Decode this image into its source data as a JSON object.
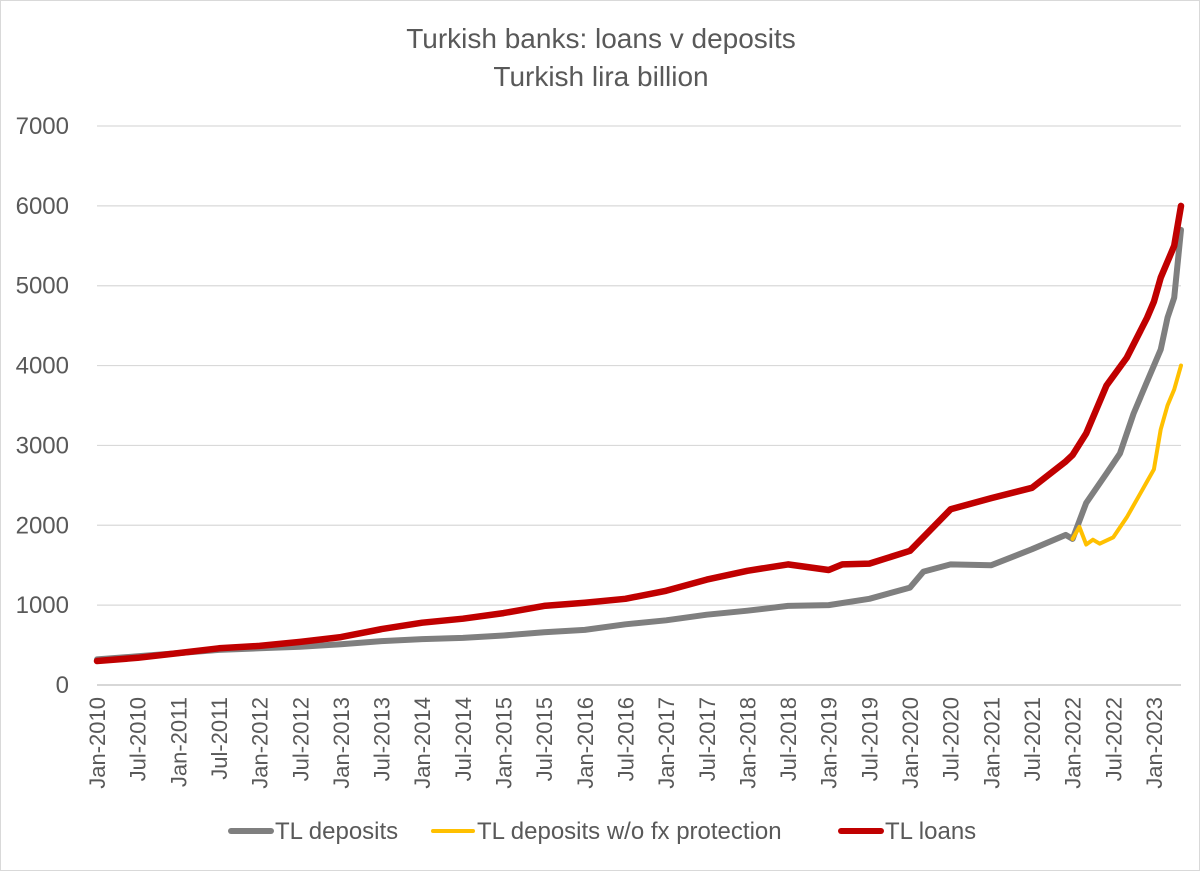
{
  "chart_data": {
    "type": "line",
    "title": "Turkish banks: loans v deposits",
    "subtitle": "Turkish lira billion",
    "xlabel": "",
    "ylabel": "",
    "ylim": [
      0,
      7000
    ],
    "yticks": [
      0,
      1000,
      2000,
      3000,
      4000,
      5000,
      6000,
      7000
    ],
    "grid": true,
    "legend_position": "bottom",
    "x_start": "Jan-2010",
    "x_end": "May-2023",
    "x_tick_labels": [
      "Jan-2010",
      "Jul-2010",
      "Jan-2011",
      "Jul-2011",
      "Jan-2012",
      "Jul-2012",
      "Jan-2013",
      "Jul-2013",
      "Jan-2014",
      "Jul-2014",
      "Jan-2015",
      "Jul-2015",
      "Jan-2016",
      "Jul-2016",
      "Jan-2017",
      "Jul-2017",
      "Jan-2018",
      "Jul-2018",
      "Jan-2019",
      "Jul-2019",
      "Jan-2020",
      "Jul-2020",
      "Jan-2021",
      "Jul-2021",
      "Jan-2022",
      "Jul-2022",
      "Jan-2023"
    ],
    "series": [
      {
        "name": "TL deposits",
        "color": "#7f7f7f",
        "points": [
          [
            "Jan-2010",
            320
          ],
          [
            "Jul-2010",
            360
          ],
          [
            "Jan-2011",
            400
          ],
          [
            "Jul-2011",
            440
          ],
          [
            "Jan-2012",
            460
          ],
          [
            "Jul-2012",
            480
          ],
          [
            "Jan-2013",
            510
          ],
          [
            "Jul-2013",
            550
          ],
          [
            "Jan-2014",
            575
          ],
          [
            "Jul-2014",
            590
          ],
          [
            "Jan-2015",
            620
          ],
          [
            "Jul-2015",
            660
          ],
          [
            "Jan-2016",
            690
          ],
          [
            "Jul-2016",
            760
          ],
          [
            "Jan-2017",
            810
          ],
          [
            "Jul-2017",
            880
          ],
          [
            "Jan-2018",
            930
          ],
          [
            "Jul-2018",
            990
          ],
          [
            "Jan-2019",
            1000
          ],
          [
            "Jul-2019",
            1080
          ],
          [
            "Jan-2020",
            1220
          ],
          [
            "Mar-2020",
            1420
          ],
          [
            "Jul-2020",
            1510
          ],
          [
            "Jan-2021",
            1500
          ],
          [
            "Jul-2021",
            1700
          ],
          [
            "Dec-2021",
            1880
          ],
          [
            "Jan-2022",
            1830
          ],
          [
            "Mar-2022",
            2280
          ],
          [
            "Jun-2022",
            2650
          ],
          [
            "Aug-2022",
            2900
          ],
          [
            "Oct-2022",
            3400
          ],
          [
            "Dec-2022",
            3800
          ],
          [
            "Feb-2023",
            4200
          ],
          [
            "Mar-2023",
            4600
          ],
          [
            "Apr-2023",
            4850
          ],
          [
            "May-2023",
            5700
          ]
        ]
      },
      {
        "name": "TL deposits w/o fx protection",
        "color": "#ffc000",
        "points": [
          [
            "Jan-2022",
            1830
          ],
          [
            "Feb-2022",
            1980
          ],
          [
            "Mar-2022",
            1760
          ],
          [
            "Apr-2022",
            1820
          ],
          [
            "May-2022",
            1770
          ],
          [
            "Jul-2022",
            1850
          ],
          [
            "Sep-2022",
            2100
          ],
          [
            "Nov-2022",
            2400
          ],
          [
            "Jan-2023",
            2700
          ],
          [
            "Feb-2023",
            3200
          ],
          [
            "Mar-2023",
            3500
          ],
          [
            "Apr-2023",
            3700
          ],
          [
            "May-2023",
            4000
          ]
        ]
      },
      {
        "name": "TL loans",
        "color": "#c00000",
        "points": [
          [
            "Jan-2010",
            300
          ],
          [
            "Jul-2010",
            340
          ],
          [
            "Jan-2011",
            400
          ],
          [
            "Jul-2011",
            460
          ],
          [
            "Jan-2012",
            490
          ],
          [
            "Jul-2012",
            540
          ],
          [
            "Jan-2013",
            600
          ],
          [
            "Jul-2013",
            700
          ],
          [
            "Jan-2014",
            780
          ],
          [
            "Jul-2014",
            830
          ],
          [
            "Jan-2015",
            900
          ],
          [
            "Jul-2015",
            990
          ],
          [
            "Jan-2016",
            1030
          ],
          [
            "Jul-2016",
            1080
          ],
          [
            "Jan-2017",
            1180
          ],
          [
            "Jul-2017",
            1320
          ],
          [
            "Jan-2018",
            1430
          ],
          [
            "Jul-2018",
            1510
          ],
          [
            "Jan-2019",
            1440
          ],
          [
            "Mar-2019",
            1510
          ],
          [
            "Jul-2019",
            1520
          ],
          [
            "Jan-2020",
            1680
          ],
          [
            "Jul-2020",
            2200
          ],
          [
            "Jan-2021",
            2340
          ],
          [
            "Jul-2021",
            2470
          ],
          [
            "Dec-2021",
            2800
          ],
          [
            "Jan-2022",
            2880
          ],
          [
            "Mar-2022",
            3150
          ],
          [
            "Jun-2022",
            3750
          ],
          [
            "Sep-2022",
            4100
          ],
          [
            "Dec-2022",
            4600
          ],
          [
            "Jan-2023",
            4800
          ],
          [
            "Feb-2023",
            5100
          ],
          [
            "Apr-2023",
            5500
          ],
          [
            "May-2023",
            6000
          ]
        ]
      }
    ]
  }
}
